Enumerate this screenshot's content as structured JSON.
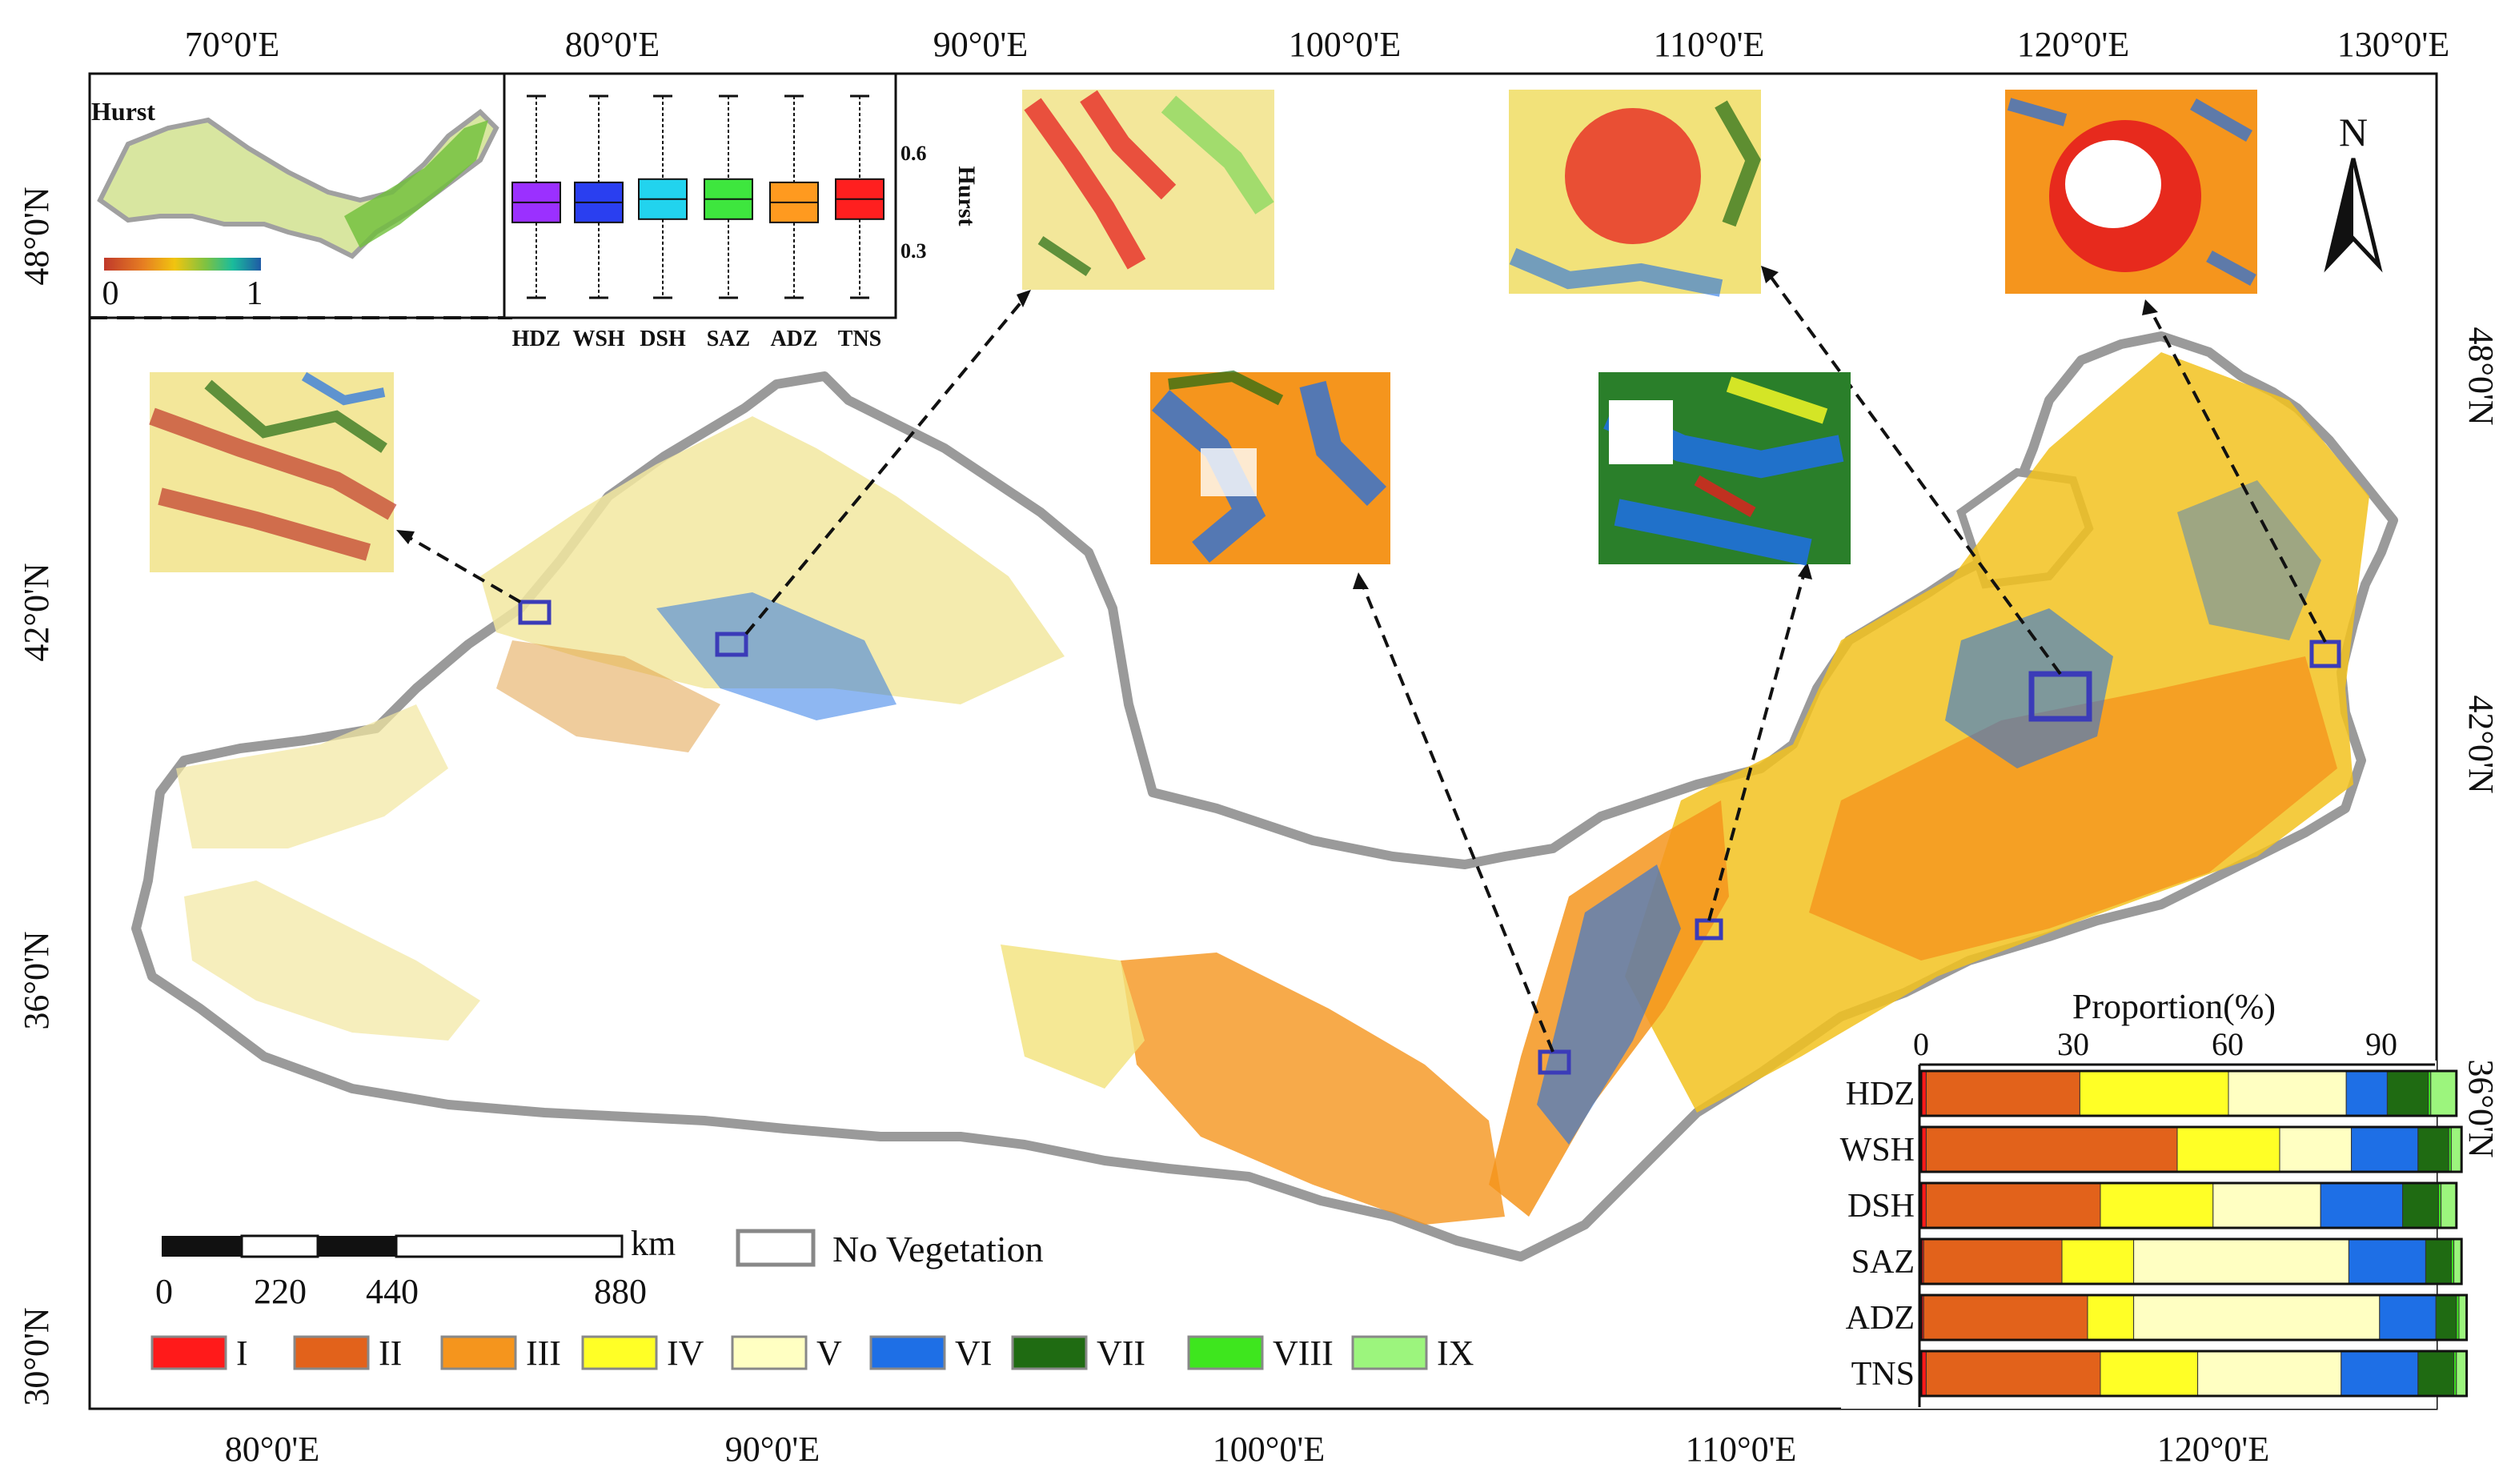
{
  "map": {
    "top_lon_labels": [
      "70°0'E",
      "80°0'E",
      "90°0'E",
      "100°0'E",
      "110°0'E",
      "120°0'E",
      "130°0'E"
    ],
    "bottom_lon_labels": [
      "80°0'E",
      "90°0'E",
      "100°0'E",
      "110°0'E",
      "120°0'E"
    ],
    "left_lat_labels": [
      "48°0'N",
      "42°0'N",
      "36°0'N",
      "30°0'N"
    ],
    "right_lat_labels": [
      "48°0'N",
      "42°0'N",
      "36°0'N"
    ],
    "north_label": "N"
  },
  "inset_hurst": {
    "title": "Hurst",
    "colorbar_min": "0",
    "colorbar_max": "1",
    "colorbar_colors": [
      "#c0392b",
      "#e67e22",
      "#f1c40f",
      "#7dc242",
      "#1abc9c",
      "#1f5aa6"
    ],
    "boxplot_ylabel": "Hurst",
    "boxplot_ticks": [
      "0.6",
      "0.3"
    ],
    "boxplot_categories": [
      "HDZ",
      "WSH",
      "DSH",
      "SAZ",
      "ADZ",
      "TNS"
    ],
    "boxplot_colors": [
      "#9b30ff",
      "#2a3ff0",
      "#22d3ee",
      "#3ee63e",
      "#ff9a1f",
      "#ff1f1f"
    ],
    "boxplot_medians": [
      0.47,
      0.47,
      0.48,
      0.48,
      0.47,
      0.48
    ]
  },
  "scalebar": {
    "unit": "km",
    "labels": [
      "0",
      "220",
      "440",
      "880"
    ]
  },
  "no_vegetation_label": "No Vegetation",
  "legend": {
    "classes": [
      {
        "label": "I",
        "color": "#ff1a1a"
      },
      {
        "label": "II",
        "color": "#e2621b"
      },
      {
        "label": "III",
        "color": "#f5951d"
      },
      {
        "label": "IV",
        "color": "#ffff26"
      },
      {
        "label": "V",
        "color": "#ffffc2"
      },
      {
        "label": "VI",
        "color": "#1e6fe6"
      },
      {
        "label": "VII",
        "color": "#1f6b12"
      },
      {
        "label": "VIII",
        "color": "#3ee61e"
      },
      {
        "label": "IX",
        "color": "#9cf57d"
      }
    ]
  },
  "chart_data": {
    "type": "bar",
    "title": "Proportion(%)",
    "xlim": [
      0,
      100
    ],
    "x_ticks": [
      "0",
      "30",
      "60",
      "90"
    ],
    "categories": [
      "HDZ",
      "WSH",
      "DSH",
      "SAZ",
      "ADZ",
      "TNS"
    ],
    "series": [
      {
        "name": "I",
        "values": [
          1,
          1,
          1,
          0.5,
          0.5,
          1
        ]
      },
      {
        "name": "II",
        "values": [
          30,
          49,
          34,
          27,
          32,
          34
        ]
      },
      {
        "name": "III",
        "values": [
          0,
          0,
          0,
          0,
          0,
          0
        ]
      },
      {
        "name": "IV",
        "values": [
          29,
          20,
          22,
          14,
          9,
          19
        ]
      },
      {
        "name": "V",
        "values": [
          23,
          14,
          21,
          42,
          48,
          28
        ]
      },
      {
        "name": "VI",
        "values": [
          8,
          13,
          16,
          15,
          11,
          15
        ]
      },
      {
        "name": "VII",
        "values": [
          8,
          6,
          7,
          5,
          4,
          7
        ]
      },
      {
        "name": "VIII",
        "values": [
          0.5,
          0.5,
          0.5,
          0.5,
          0.5,
          0.5
        ]
      },
      {
        "name": "IX",
        "values": [
          5,
          2,
          3,
          1.5,
          1.5,
          2
        ]
      }
    ]
  }
}
